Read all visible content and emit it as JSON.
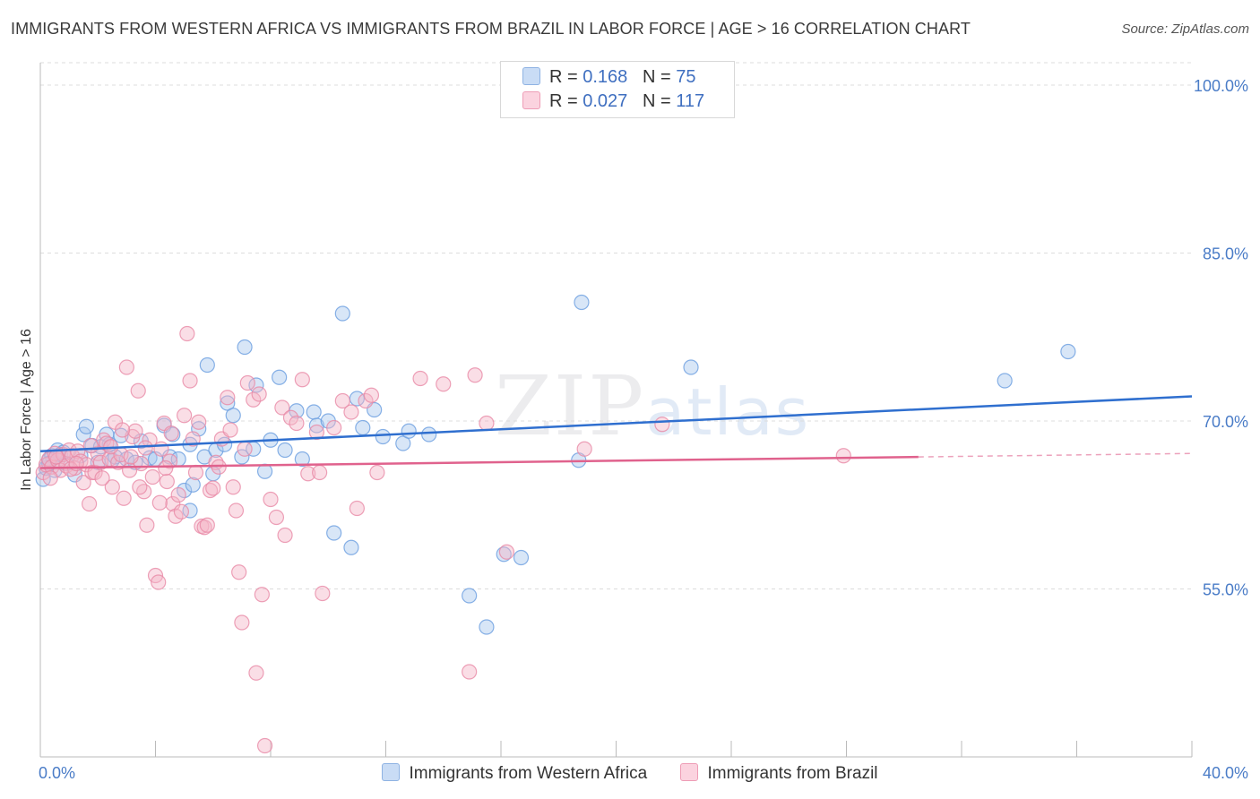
{
  "title": "IMMIGRANTS FROM WESTERN AFRICA VS IMMIGRANTS FROM BRAZIL IN LABOR FORCE | AGE > 16 CORRELATION CHART",
  "source": "Source: ZipAtlas.com",
  "watermark": {
    "zip": "ZIP",
    "atlas": "atlas"
  },
  "legend": {
    "rows": [
      {
        "r_label": "R = ",
        "r_value": "0.168",
        "n_label": "N = ",
        "n_value": "75",
        "color": "#a9c8ee"
      },
      {
        "r_label": "R = ",
        "r_value": "0.027",
        "n_label": "N = ",
        "n_value": "117",
        "color": "#f5b5c8"
      }
    ]
  },
  "chart_data": {
    "type": "scatter",
    "ylabel": "In Labor Force | Age > 16",
    "xlim": [
      0,
      40
    ],
    "ylim": [
      40,
      102
    ],
    "x_tick_labels": [
      "0.0%",
      "40.0%"
    ],
    "y_ticks": [
      {
        "value": 100,
        "label": "100.0%"
      },
      {
        "value": 85,
        "label": "85.0%"
      },
      {
        "value": 70,
        "label": "70.0%"
      },
      {
        "value": 55,
        "label": "55.0%"
      }
    ],
    "grid": true,
    "legend_position": "top-center",
    "series": [
      {
        "name": "Immigrants from Western Africa",
        "color": "#6a9de0",
        "fill": "#a9c8ee",
        "trend": {
          "x": [
            0,
            40
          ],
          "y": [
            67.3,
            72.2
          ],
          "dashed_from": null
        },
        "points": [
          [
            0.1,
            64.8
          ],
          [
            0.2,
            65.8
          ],
          [
            0.3,
            66.5
          ],
          [
            0.4,
            66.9
          ],
          [
            0.5,
            65.6
          ],
          [
            0.6,
            67.4
          ],
          [
            0.7,
            67.0
          ],
          [
            0.9,
            66.2
          ],
          [
            1.2,
            65.2
          ],
          [
            1.4,
            66.9
          ],
          [
            1.5,
            68.8
          ],
          [
            1.6,
            69.5
          ],
          [
            1.8,
            67.8
          ],
          [
            2.0,
            66.3
          ],
          [
            2.1,
            67.7
          ],
          [
            2.3,
            68.8
          ],
          [
            2.5,
            66.5
          ],
          [
            2.6,
            66.8
          ],
          [
            2.8,
            68.7
          ],
          [
            3.0,
            66.6
          ],
          [
            3.3,
            66.3
          ],
          [
            3.5,
            68.2
          ],
          [
            3.8,
            66.7
          ],
          [
            4.0,
            66.6
          ],
          [
            4.3,
            69.6
          ],
          [
            4.5,
            66.8
          ],
          [
            4.6,
            68.8
          ],
          [
            4.8,
            66.6
          ],
          [
            5.0,
            63.8
          ],
          [
            5.2,
            62.0
          ],
          [
            5.2,
            67.9
          ],
          [
            5.3,
            64.3
          ],
          [
            5.5,
            69.3
          ],
          [
            5.7,
            66.8
          ],
          [
            5.8,
            75.0
          ],
          [
            6.0,
            65.3
          ],
          [
            6.1,
            67.4
          ],
          [
            6.4,
            67.9
          ],
          [
            6.5,
            71.6
          ],
          [
            6.7,
            70.5
          ],
          [
            7.0,
            66.8
          ],
          [
            7.1,
            76.6
          ],
          [
            7.4,
            67.5
          ],
          [
            7.5,
            73.2
          ],
          [
            7.8,
            65.5
          ],
          [
            8.0,
            68.3
          ],
          [
            8.3,
            73.9
          ],
          [
            8.5,
            67.4
          ],
          [
            8.9,
            70.9
          ],
          [
            9.1,
            66.6
          ],
          [
            9.5,
            70.8
          ],
          [
            9.6,
            69.6
          ],
          [
            10.0,
            70.0
          ],
          [
            10.2,
            60.0
          ],
          [
            10.5,
            79.6
          ],
          [
            10.8,
            58.7
          ],
          [
            11.0,
            72.0
          ],
          [
            11.2,
            69.4
          ],
          [
            11.6,
            71.0
          ],
          [
            11.9,
            68.6
          ],
          [
            12.6,
            68.0
          ],
          [
            12.8,
            69.1
          ],
          [
            13.5,
            68.8
          ],
          [
            14.9,
            54.4
          ],
          [
            15.5,
            51.6
          ],
          [
            16.1,
            58.1
          ],
          [
            16.7,
            57.8
          ],
          [
            18.7,
            66.5
          ],
          [
            18.8,
            80.6
          ],
          [
            22.6,
            74.8
          ],
          [
            33.5,
            73.6
          ],
          [
            35.7,
            76.2
          ],
          [
            0.3,
            66.2
          ],
          [
            0.8,
            67.2
          ],
          [
            2.4,
            67.9
          ]
        ]
      },
      {
        "name": "Immigrants from Brazil",
        "color": "#e889a6",
        "fill": "#f5b5c8",
        "trend": {
          "x": [
            0,
            40
          ],
          "y": [
            65.8,
            67.1
          ],
          "dashed_from": 30.5
        },
        "points": [
          [
            0.1,
            65.4
          ],
          [
            0.2,
            66.1
          ],
          [
            0.3,
            66.6
          ],
          [
            0.4,
            65.9
          ],
          [
            0.5,
            67.1
          ],
          [
            0.6,
            66.5
          ],
          [
            0.7,
            65.6
          ],
          [
            0.8,
            67.0
          ],
          [
            0.9,
            66.0
          ],
          [
            1.0,
            67.4
          ],
          [
            1.1,
            66.9
          ],
          [
            1.2,
            65.8
          ],
          [
            1.3,
            67.3
          ],
          [
            1.4,
            66.4
          ],
          [
            1.5,
            64.5
          ],
          [
            1.6,
            66.1
          ],
          [
            1.7,
            62.6
          ],
          [
            1.8,
            65.4
          ],
          [
            1.9,
            65.4
          ],
          [
            2.0,
            67.1
          ],
          [
            2.1,
            66.3
          ],
          [
            2.2,
            68.3
          ],
          [
            2.3,
            68.0
          ],
          [
            2.4,
            66.6
          ],
          [
            2.5,
            64.1
          ],
          [
            2.6,
            69.9
          ],
          [
            2.7,
            66.3
          ],
          [
            2.8,
            67.0
          ],
          [
            2.9,
            63.1
          ],
          [
            3.0,
            74.8
          ],
          [
            3.1,
            65.6
          ],
          [
            3.2,
            68.6
          ],
          [
            3.3,
            69.1
          ],
          [
            3.4,
            72.7
          ],
          [
            3.5,
            66.2
          ],
          [
            3.6,
            63.7
          ],
          [
            3.7,
            60.7
          ],
          [
            3.8,
            68.3
          ],
          [
            3.9,
            65.0
          ],
          [
            4.0,
            56.2
          ],
          [
            4.1,
            55.6
          ],
          [
            4.2,
            67.5
          ],
          [
            4.3,
            69.8
          ],
          [
            4.4,
            64.6
          ],
          [
            4.5,
            66.4
          ],
          [
            4.6,
            62.6
          ],
          [
            4.7,
            61.5
          ],
          [
            4.8,
            63.4
          ],
          [
            4.9,
            61.9
          ],
          [
            5.0,
            70.5
          ],
          [
            5.1,
            77.8
          ],
          [
            5.2,
            73.6
          ],
          [
            5.3,
            68.4
          ],
          [
            5.4,
            65.4
          ],
          [
            5.5,
            69.9
          ],
          [
            5.6,
            60.6
          ],
          [
            5.7,
            60.5
          ],
          [
            5.8,
            60.7
          ],
          [
            5.9,
            63.8
          ],
          [
            6.0,
            64.0
          ],
          [
            6.1,
            66.3
          ],
          [
            6.2,
            65.9
          ],
          [
            6.3,
            68.4
          ],
          [
            6.5,
            72.1
          ],
          [
            6.6,
            69.2
          ],
          [
            6.7,
            64.1
          ],
          [
            6.8,
            62.0
          ],
          [
            6.9,
            56.5
          ],
          [
            7.0,
            52.0
          ],
          [
            7.1,
            67.5
          ],
          [
            7.2,
            73.4
          ],
          [
            7.4,
            71.9
          ],
          [
            7.5,
            47.5
          ],
          [
            7.6,
            72.4
          ],
          [
            7.7,
            54.5
          ],
          [
            7.8,
            41.0
          ],
          [
            8.0,
            63.0
          ],
          [
            8.2,
            61.4
          ],
          [
            8.4,
            71.2
          ],
          [
            8.5,
            59.8
          ],
          [
            8.7,
            70.3
          ],
          [
            8.9,
            69.8
          ],
          [
            9.1,
            73.7
          ],
          [
            9.3,
            65.3
          ],
          [
            9.6,
            69.0
          ],
          [
            9.7,
            65.4
          ],
          [
            9.8,
            54.6
          ],
          [
            10.2,
            69.4
          ],
          [
            10.5,
            71.8
          ],
          [
            10.8,
            70.8
          ],
          [
            11.0,
            62.2
          ],
          [
            11.3,
            71.8
          ],
          [
            11.5,
            72.3
          ],
          [
            11.7,
            65.4
          ],
          [
            13.2,
            73.8
          ],
          [
            14.0,
            73.3
          ],
          [
            14.9,
            47.6
          ],
          [
            15.1,
            74.1
          ],
          [
            15.5,
            69.8
          ],
          [
            16.2,
            58.3
          ],
          [
            18.9,
            67.5
          ],
          [
            21.6,
            69.7
          ],
          [
            27.9,
            66.9
          ],
          [
            0.35,
            64.9
          ],
          [
            0.55,
            66.8
          ],
          [
            1.05,
            65.7
          ],
          [
            1.25,
            66.2
          ],
          [
            1.75,
            67.8
          ],
          [
            2.15,
            64.9
          ],
          [
            2.45,
            67.7
          ],
          [
            2.85,
            69.2
          ],
          [
            3.15,
            66.8
          ],
          [
            3.45,
            64.1
          ],
          [
            3.65,
            67.6
          ],
          [
            4.15,
            62.7
          ],
          [
            4.35,
            65.8
          ],
          [
            4.55,
            68.9
          ]
        ]
      }
    ]
  }
}
